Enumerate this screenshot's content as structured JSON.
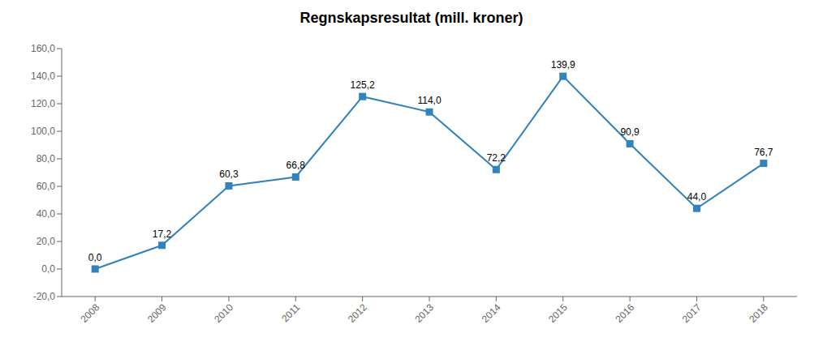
{
  "chart_data": {
    "type": "line",
    "title": "Regnskapsresultat (mill. kroner)",
    "x": [
      2008,
      2009,
      2010,
      2011,
      2012,
      2013,
      2014,
      2015,
      2016,
      2017,
      2018
    ],
    "values": [
      0.0,
      17.2,
      60.3,
      66.8,
      125.2,
      114.0,
      72.2,
      139.9,
      90.9,
      44.0,
      76.7
    ],
    "value_labels": [
      "0,0",
      "17,2",
      "60,3",
      "66,8",
      "125,2",
      "114,0",
      "72,2",
      "139,9",
      "90,9",
      "44,0",
      "76,7"
    ],
    "data_labels": true,
    "marker": "square",
    "xlim": [
      2007.5,
      2018.5
    ],
    "xticks": [
      2008,
      2009,
      2010,
      2011,
      2012,
      2013,
      2014,
      2015,
      2016,
      2017,
      2018
    ],
    "ylim": [
      -20,
      160
    ],
    "yticks": [
      {
        "value": -20,
        "label": "-20,0"
      },
      {
        "value": 0,
        "label": "0,0"
      },
      {
        "value": 20,
        "label": "20,0"
      },
      {
        "value": 40,
        "label": "40,0"
      },
      {
        "value": 60,
        "label": "60,0"
      },
      {
        "value": 80,
        "label": "80,0"
      },
      {
        "value": 100,
        "label": "100,0"
      },
      {
        "value": 120,
        "label": "120,0"
      },
      {
        "value": 140,
        "label": "140,0"
      },
      {
        "value": 160,
        "label": "160,0"
      }
    ],
    "grid": false
  }
}
